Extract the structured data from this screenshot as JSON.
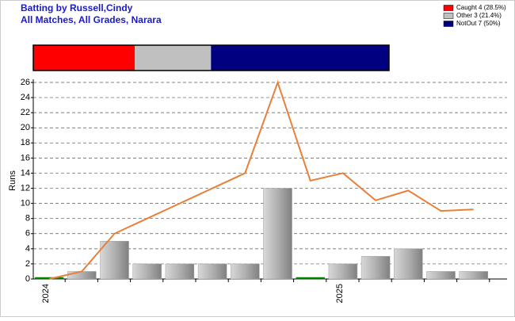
{
  "chart_data": {
    "type": "bar",
    "title": "Batting by Russell,Cindy",
    "subtitle": "All Matches, All Grades, Narara",
    "summary": [
      {
        "name": "Caught 4 (28.5%)",
        "color": "#ff0000",
        "value": 28.5
      },
      {
        "name": "Other 3 (21.4%)",
        "color": "#c0c0c0",
        "value": 21.4
      },
      {
        "name": "NotOut 7 (50%)",
        "color": "#000080",
        "value": 50
      }
    ],
    "y_label": "Runs",
    "categories": [
      "2024",
      null,
      null,
      null,
      null,
      null,
      null,
      null,
      null,
      "2025",
      null,
      null,
      null,
      null
    ],
    "values": [
      0,
      1,
      5,
      2,
      2,
      2,
      2,
      12,
      0,
      2,
      3,
      4,
      1,
      1
    ],
    "bar_colors": [
      "#008000",
      "#a0a0a0",
      "#a0a0a0",
      "#a0a0a0",
      "#a0a0a0",
      "#a0a0a0",
      "#a0a0a0",
      "#a0a0a0",
      "#008000",
      "#a0a0a0",
      "#a0a0a0",
      "#a0a0a0",
      "#a0a0a0",
      "#a0a0a0"
    ],
    "line": {
      "color": "#e8803a",
      "values": [
        0,
        1,
        6,
        8,
        10,
        12,
        14,
        26,
        13,
        14,
        10.4,
        11.7,
        9,
        9.2
      ]
    },
    "ylim": [
      0,
      26
    ],
    "yticks": [
      0,
      2,
      4,
      6,
      8,
      10,
      12,
      14,
      16,
      18,
      20,
      22,
      24,
      26
    ],
    "grid": true
  }
}
